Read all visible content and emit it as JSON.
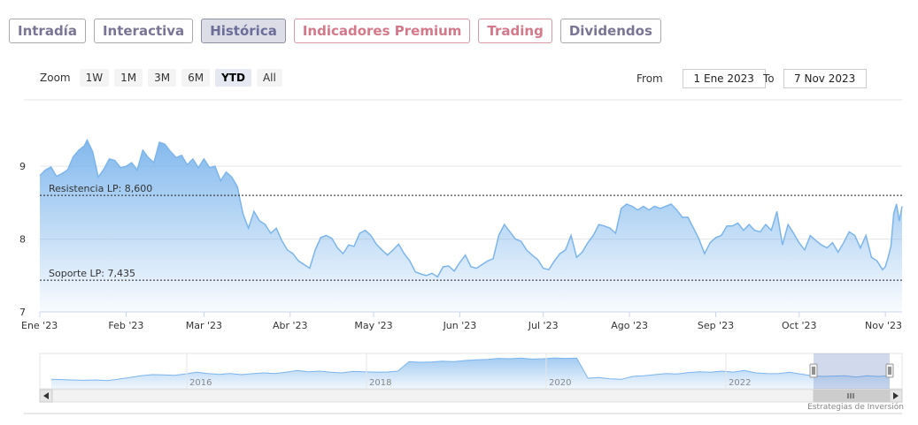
{
  "tabs": [
    {
      "label": "Intradía",
      "style": "normal"
    },
    {
      "label": "Interactiva",
      "style": "normal"
    },
    {
      "label": "Histórica",
      "style": "active"
    },
    {
      "label": "Indicadores Premium",
      "style": "pink"
    },
    {
      "label": "Trading",
      "style": "pink"
    },
    {
      "label": "Dividendos",
      "style": "normal"
    }
  ],
  "zoom": {
    "label": "Zoom",
    "buttons": [
      "1W",
      "1M",
      "3M",
      "6M",
      "YTD",
      "All"
    ],
    "selected": "YTD"
  },
  "range": {
    "from_label": "From",
    "from_value": "1 Ene 2023",
    "to_label": "To",
    "to_value": "7 Nov 2023"
  },
  "credit": "Estrategias de Inversión",
  "colors": {
    "line": "#7cb5ec",
    "accent": "#6c6e99",
    "pink": "#d4788a"
  },
  "chart_data": {
    "type": "area",
    "ylim": [
      7,
      9.9
    ],
    "y_ticks": [
      "7",
      "8",
      "9"
    ],
    "x_ticks": [
      "Ene '23",
      "Feb '23",
      "Mar '23",
      "Abr '23",
      "May '23",
      "Jun '23",
      "Jul '23",
      "Ago '23",
      "Sep '23",
      "Oct '23",
      "Nov '23"
    ],
    "xlim": [
      "2023-01-01",
      "2023-11-07"
    ],
    "plot_lines": [
      {
        "label": "Resistencia LP: 8,600",
        "value": 8.6
      },
      {
        "label": "Soporte LP: 7,435",
        "value": 7.435
      }
    ],
    "series": [
      {
        "points": [
          [
            "2023-01-01",
            8.87
          ],
          [
            "2023-01-03",
            8.95
          ],
          [
            "2023-01-05",
            8.99
          ],
          [
            "2023-01-07",
            8.86
          ],
          [
            "2023-01-09",
            8.9
          ],
          [
            "2023-01-11",
            8.95
          ],
          [
            "2023-01-13",
            9.13
          ],
          [
            "2023-01-15",
            9.22
          ],
          [
            "2023-01-17",
            9.28
          ],
          [
            "2023-01-18",
            9.36
          ],
          [
            "2023-01-20",
            9.2
          ],
          [
            "2023-01-22",
            8.85
          ],
          [
            "2023-01-24",
            8.96
          ],
          [
            "2023-01-26",
            9.1
          ],
          [
            "2023-01-28",
            9.08
          ],
          [
            "2023-01-30",
            8.98
          ],
          [
            "2023-02-01",
            9.0
          ],
          [
            "2023-02-03",
            9.05
          ],
          [
            "2023-02-05",
            8.95
          ],
          [
            "2023-02-07",
            9.22
          ],
          [
            "2023-02-09",
            9.12
          ],
          [
            "2023-02-11",
            9.05
          ],
          [
            "2023-02-13",
            9.33
          ],
          [
            "2023-02-15",
            9.3
          ],
          [
            "2023-02-17",
            9.2
          ],
          [
            "2023-02-19",
            9.12
          ],
          [
            "2023-02-21",
            9.15
          ],
          [
            "2023-02-23",
            9.02
          ],
          [
            "2023-02-25",
            9.1
          ],
          [
            "2023-02-27",
            8.98
          ],
          [
            "2023-03-01",
            9.1
          ],
          [
            "2023-03-03",
            8.98
          ],
          [
            "2023-03-05",
            9.0
          ],
          [
            "2023-03-07",
            8.8
          ],
          [
            "2023-03-09",
            8.92
          ],
          [
            "2023-03-11",
            8.85
          ],
          [
            "2023-03-13",
            8.72
          ],
          [
            "2023-03-15",
            8.35
          ],
          [
            "2023-03-17",
            8.15
          ],
          [
            "2023-03-19",
            8.38
          ],
          [
            "2023-03-21",
            8.25
          ],
          [
            "2023-03-23",
            8.2
          ],
          [
            "2023-03-25",
            8.08
          ],
          [
            "2023-03-27",
            8.15
          ],
          [
            "2023-03-29",
            7.98
          ],
          [
            "2023-03-31",
            7.85
          ],
          [
            "2023-04-02",
            7.8
          ],
          [
            "2023-04-04",
            7.7
          ],
          [
            "2023-04-06",
            7.65
          ],
          [
            "2023-04-08",
            7.6
          ],
          [
            "2023-04-10",
            7.85
          ],
          [
            "2023-04-12",
            8.02
          ],
          [
            "2023-04-14",
            8.05
          ],
          [
            "2023-04-16",
            8.01
          ],
          [
            "2023-04-18",
            7.88
          ],
          [
            "2023-04-20",
            7.8
          ],
          [
            "2023-04-22",
            7.92
          ],
          [
            "2023-04-24",
            7.9
          ],
          [
            "2023-04-26",
            8.08
          ],
          [
            "2023-04-28",
            8.12
          ],
          [
            "2023-04-30",
            8.05
          ],
          [
            "2023-05-02",
            7.93
          ],
          [
            "2023-05-04",
            7.85
          ],
          [
            "2023-05-06",
            7.78
          ],
          [
            "2023-05-08",
            7.85
          ],
          [
            "2023-05-10",
            7.93
          ],
          [
            "2023-05-12",
            7.8
          ],
          [
            "2023-05-14",
            7.7
          ],
          [
            "2023-05-16",
            7.55
          ],
          [
            "2023-05-18",
            7.52
          ],
          [
            "2023-05-20",
            7.5
          ],
          [
            "2023-05-22",
            7.53
          ],
          [
            "2023-05-24",
            7.48
          ],
          [
            "2023-05-26",
            7.62
          ],
          [
            "2023-05-28",
            7.63
          ],
          [
            "2023-05-30",
            7.56
          ],
          [
            "2023-06-01",
            7.68
          ],
          [
            "2023-06-03",
            7.78
          ],
          [
            "2023-06-05",
            7.62
          ],
          [
            "2023-06-07",
            7.6
          ],
          [
            "2023-06-09",
            7.65
          ],
          [
            "2023-06-11",
            7.7
          ],
          [
            "2023-06-13",
            7.73
          ],
          [
            "2023-06-15",
            8.05
          ],
          [
            "2023-06-17",
            8.2
          ],
          [
            "2023-06-19",
            8.1
          ],
          [
            "2023-06-21",
            8.0
          ],
          [
            "2023-06-23",
            7.97
          ],
          [
            "2023-06-25",
            7.85
          ],
          [
            "2023-06-27",
            7.78
          ],
          [
            "2023-06-29",
            7.72
          ],
          [
            "2023-07-01",
            7.6
          ],
          [
            "2023-07-03",
            7.58
          ],
          [
            "2023-07-05",
            7.7
          ],
          [
            "2023-07-07",
            7.8
          ],
          [
            "2023-07-09",
            7.85
          ],
          [
            "2023-07-11",
            8.05
          ],
          [
            "2023-07-13",
            7.75
          ],
          [
            "2023-07-15",
            7.82
          ],
          [
            "2023-07-17",
            7.95
          ],
          [
            "2023-07-19",
            8.05
          ],
          [
            "2023-07-21",
            8.2
          ],
          [
            "2023-07-23",
            8.18
          ],
          [
            "2023-07-25",
            8.15
          ],
          [
            "2023-07-27",
            8.08
          ],
          [
            "2023-07-29",
            8.42
          ],
          [
            "2023-07-31",
            8.48
          ],
          [
            "2023-08-02",
            8.45
          ],
          [
            "2023-08-04",
            8.4
          ],
          [
            "2023-08-06",
            8.45
          ],
          [
            "2023-08-08",
            8.4
          ],
          [
            "2023-08-10",
            8.45
          ],
          [
            "2023-08-12",
            8.42
          ],
          [
            "2023-08-14",
            8.45
          ],
          [
            "2023-08-16",
            8.48
          ],
          [
            "2023-08-18",
            8.4
          ],
          [
            "2023-08-20",
            8.3
          ],
          [
            "2023-08-22",
            8.3
          ],
          [
            "2023-08-24",
            8.15
          ],
          [
            "2023-08-26",
            8.0
          ],
          [
            "2023-08-28",
            7.8
          ],
          [
            "2023-08-30",
            7.95
          ],
          [
            "2023-09-01",
            8.02
          ],
          [
            "2023-09-03",
            8.05
          ],
          [
            "2023-09-05",
            8.18
          ],
          [
            "2023-09-07",
            8.18
          ],
          [
            "2023-09-09",
            8.22
          ],
          [
            "2023-09-11",
            8.12
          ],
          [
            "2023-09-13",
            8.2
          ],
          [
            "2023-09-15",
            8.12
          ],
          [
            "2023-09-17",
            8.1
          ],
          [
            "2023-09-19",
            8.2
          ],
          [
            "2023-09-21",
            8.12
          ],
          [
            "2023-09-23",
            8.38
          ],
          [
            "2023-09-25",
            7.92
          ],
          [
            "2023-09-27",
            8.2
          ],
          [
            "2023-09-29",
            8.08
          ],
          [
            "2023-10-01",
            7.95
          ],
          [
            "2023-10-03",
            7.85
          ],
          [
            "2023-10-05",
            8.05
          ],
          [
            "2023-10-07",
            7.98
          ],
          [
            "2023-10-09",
            7.92
          ],
          [
            "2023-10-11",
            7.88
          ],
          [
            "2023-10-13",
            7.95
          ],
          [
            "2023-10-15",
            7.82
          ],
          [
            "2023-10-17",
            7.95
          ],
          [
            "2023-10-19",
            8.1
          ],
          [
            "2023-10-21",
            8.05
          ],
          [
            "2023-10-23",
            7.88
          ],
          [
            "2023-10-25",
            8.05
          ],
          [
            "2023-10-27",
            7.75
          ],
          [
            "2023-10-29",
            7.7
          ],
          [
            "2023-10-31",
            7.58
          ],
          [
            "2023-11-01",
            7.62
          ],
          [
            "2023-11-02",
            7.75
          ],
          [
            "2023-11-03",
            7.9
          ],
          [
            "2023-11-04",
            8.35
          ],
          [
            "2023-11-05",
            8.48
          ],
          [
            "2023-11-06",
            8.25
          ],
          [
            "2023-11-07",
            8.45
          ]
        ]
      }
    ],
    "navigator": {
      "x_ticks": [
        "2016",
        "2018",
        "2020",
        "2022"
      ],
      "values": [
        0.8,
        0.78,
        0.74,
        0.72,
        0.75,
        0.7,
        0.82,
        0.95,
        1.1,
        1.2,
        1.18,
        1.15,
        1.25,
        1.4,
        1.3,
        1.22,
        1.3,
        1.2,
        1.28,
        1.35,
        1.3,
        1.4,
        1.55,
        1.45,
        1.5,
        1.4,
        1.35,
        1.48,
        1.45,
        1.42,
        1.42,
        1.5,
        2.3,
        2.25,
        2.28,
        2.35,
        2.3,
        2.4,
        2.45,
        2.5,
        2.58,
        2.55,
        2.6,
        2.52,
        2.55,
        2.62,
        2.58,
        2.6,
        0.9,
        0.95,
        0.85,
        0.8,
        1.05,
        1.1,
        1.2,
        1.3,
        1.25,
        1.38,
        1.45,
        1.4,
        1.5,
        1.42,
        1.55,
        1.35,
        1.3,
        1.28,
        1.4,
        1.25,
        1.12,
        1.05,
        1.08,
        1.1,
        1.0,
        1.1,
        1.05,
        1.12
      ],
      "selected_range": [
        "2023-01-01",
        "2023-11-07"
      ]
    }
  }
}
